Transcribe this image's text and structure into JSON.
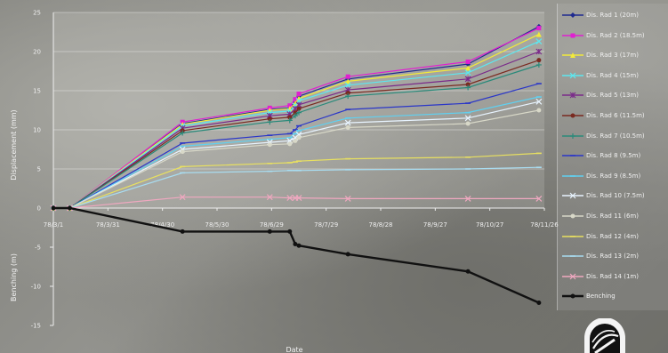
{
  "chart_data": {
    "type": "line",
    "xlabel": "Date",
    "x_ticks": [
      "78/3/1",
      "78/3/31",
      "78/4/30",
      "78/5/30",
      "78/6/29",
      "78/7/29",
      "78/8/28",
      "78/9/27",
      "78/10/27",
      "78/11/26"
    ],
    "y_axes": [
      {
        "label": "Displacement (mm)",
        "range": [
          0,
          25
        ],
        "ticks": [
          "0",
          "5",
          "10",
          "15",
          "20",
          "25"
        ]
      },
      {
        "label": "Benching (m)",
        "range": [
          -15,
          0
        ],
        "ticks": [
          "-15",
          "-10",
          "-5"
        ]
      }
    ],
    "x": [
      "78/3/1",
      "78/3/10",
      "78/5/11",
      "78/6/28",
      "78/7/9",
      "78/7/12",
      "78/7/14",
      "78/8/10",
      "78/10/15",
      "78/11/23"
    ],
    "series": [
      {
        "name": "Dis. Rad 1 (20m)",
        "color": "#1f2a8f",
        "marker": "diamond",
        "values": [
          0,
          0,
          10.8,
          12.6,
          12.8,
          13.6,
          14.3,
          16.5,
          18.4,
          23.2
        ]
      },
      {
        "name": "Dis. Rad 2 (18.5m)",
        "color": "#e020d0",
        "marker": "square",
        "values": [
          0,
          0,
          11.0,
          12.8,
          13.1,
          13.9,
          14.6,
          16.8,
          18.7,
          23.0
        ]
      },
      {
        "name": "Dis. Rad 3 (17m)",
        "color": "#f2ea3a",
        "marker": "triangle",
        "values": [
          0,
          0,
          10.7,
          12.5,
          12.7,
          13.4,
          14.0,
          16.2,
          17.9,
          22.2
        ]
      },
      {
        "name": "Dis. Rad 4 (15m)",
        "color": "#5ce8f0",
        "marker": "x",
        "values": [
          0,
          0,
          10.5,
          12.2,
          12.4,
          13.1,
          13.7,
          15.7,
          17.3,
          21.3
        ]
      },
      {
        "name": "Dis. Rad 5 (13m)",
        "color": "#7a2a8a",
        "marker": "star",
        "values": [
          0,
          0,
          10.2,
          11.8,
          12.0,
          12.7,
          13.2,
          15.1,
          16.5,
          20.0
        ]
      },
      {
        "name": "Dis. Rad 6 (11.5m)",
        "color": "#7a2a20",
        "marker": "circle",
        "values": [
          0,
          0,
          9.9,
          11.4,
          11.6,
          12.2,
          12.7,
          14.7,
          15.8,
          18.9
        ]
      },
      {
        "name": "Dis. Rad 7 (10.5m)",
        "color": "#2a8a7a",
        "marker": "plus",
        "values": [
          0,
          0,
          9.6,
          11.0,
          11.2,
          11.8,
          12.2,
          14.3,
          15.4,
          18.3
        ]
      },
      {
        "name": "Dis. Rad 8 (9.5m)",
        "color": "#2a36c8",
        "marker": "dash",
        "values": [
          0,
          0,
          8.3,
          9.3,
          9.5,
          10.0,
          10.5,
          12.6,
          13.4,
          15.9
        ]
      },
      {
        "name": "Dis. Rad 9 (8.5m)",
        "color": "#60d0f0",
        "marker": "dash",
        "values": [
          0,
          0,
          7.9,
          8.8,
          9.0,
          9.5,
          9.9,
          11.5,
          12.2,
          14.2
        ]
      },
      {
        "name": "Dis. Rad 10 (7.5m)",
        "color": "#e8f4ff",
        "marker": "x",
        "values": [
          0,
          0,
          7.5,
          8.4,
          8.6,
          9.0,
          9.4,
          10.9,
          11.5,
          13.6
        ]
      },
      {
        "name": "Dis. Rad 11 (6m)",
        "color": "#d8d8c8",
        "marker": "circle",
        "values": [
          0,
          0,
          7.2,
          8.1,
          8.2,
          8.6,
          9.0,
          10.3,
          10.8,
          12.5
        ]
      },
      {
        "name": "Dis. Rad 12 (4m)",
        "color": "#e8e060",
        "marker": "dash",
        "values": [
          0,
          0,
          5.3,
          5.7,
          5.8,
          5.9,
          6.0,
          6.3,
          6.5,
          7.0
        ]
      },
      {
        "name": "Dis. Rad 13 (2m)",
        "color": "#a8dcf0",
        "marker": "dash",
        "values": [
          0,
          0,
          4.5,
          4.7,
          4.8,
          4.8,
          4.8,
          4.9,
          5.0,
          5.2
        ]
      },
      {
        "name": "Dis. Rad 14 (1m)",
        "color": "#f0a8c0",
        "marker": "x",
        "values": [
          0,
          0,
          1.4,
          1.4,
          1.3,
          1.3,
          1.3,
          1.2,
          1.2,
          1.2
        ]
      },
      {
        "name": "Benching",
        "color": "#111111",
        "marker": "circle",
        "axis": "Benching (m)",
        "values": [
          0,
          0,
          -3.0,
          -3.0,
          -3.0,
          -4.6,
          -4.8,
          -5.9,
          -8.1,
          -12.1
        ]
      }
    ],
    "grid": true,
    "legend_position": "right"
  },
  "logo": {
    "icon": "company-logo-icon"
  }
}
